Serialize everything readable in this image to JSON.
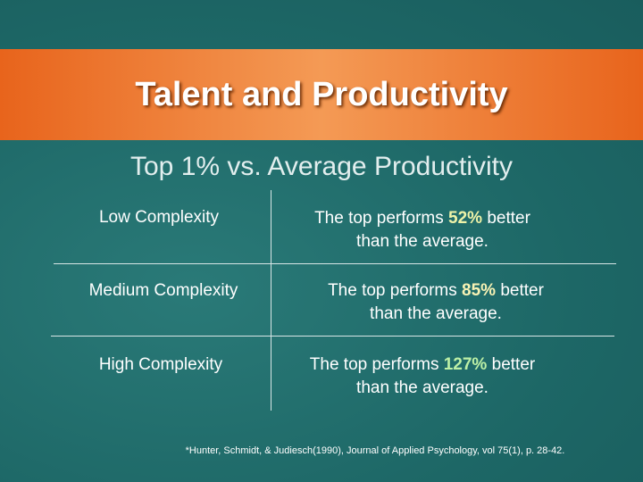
{
  "header": {
    "title": "Talent and Productivity"
  },
  "subtitle": "Top 1% vs. Average Productivity",
  "table": {
    "rows": [
      {
        "label": "Low Complexity",
        "prefix": "The top performs",
        "pct": "52%",
        "suffix": "better",
        "line2": "than the average."
      },
      {
        "label": "Medium Complexity",
        "prefix": "The top performs",
        "pct": "85%",
        "suffix": "better",
        "line2": "than the average."
      },
      {
        "label": "High Complexity",
        "prefix": "The top performs",
        "pct": "127%",
        "suffix": "better",
        "line2": "than the average."
      }
    ]
  },
  "footnote": "*Hunter, Schmidt, & Judiesch(1990), Journal of Applied Psychology, vol 75(1), p. 28-42."
}
